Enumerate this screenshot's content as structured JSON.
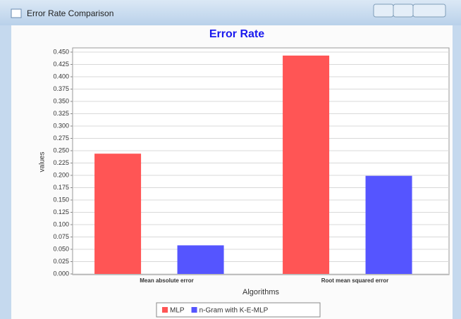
{
  "window": {
    "title": "Error Rate Comparison"
  },
  "chart_data": {
    "type": "bar",
    "title": "Error Rate",
    "xlabel": "Algorithms",
    "ylabel": "values",
    "categories": [
      "Mean absolute error",
      "Root mean squared error"
    ],
    "series": [
      {
        "name": "MLP",
        "color": "#ff5555",
        "values": [
          0.244,
          0.443
        ]
      },
      {
        "name": "n-Gram with K-E-MLP",
        "color": "#5555ff",
        "values": [
          0.058,
          0.199
        ]
      }
    ],
    "ylim": [
      0,
      0.45
    ],
    "yticks": [
      {
        "value": 0,
        "label": "0.000"
      },
      {
        "value": 0.025,
        "label": "0.025"
      },
      {
        "value": 0.05,
        "label": "0.050"
      },
      {
        "value": 0.075,
        "label": "0.075"
      },
      {
        "value": 0.1,
        "label": "0.100"
      },
      {
        "value": 0.125,
        "label": "0.125"
      },
      {
        "value": 0.15,
        "label": "0.150"
      },
      {
        "value": 0.175,
        "label": "0.175"
      },
      {
        "value": 0.2,
        "label": "0.200"
      },
      {
        "value": 0.225,
        "label": "0.225"
      },
      {
        "value": 0.25,
        "label": "0.250"
      },
      {
        "value": 0.275,
        "label": "0.275"
      },
      {
        "value": 0.3,
        "label": "0.300"
      },
      {
        "value": 0.325,
        "label": "0.325"
      },
      {
        "value": 0.35,
        "label": "0.350"
      },
      {
        "value": 0.375,
        "label": "0.375"
      },
      {
        "value": 0.4,
        "label": "0.400"
      },
      {
        "value": 0.425,
        "label": "0.425"
      },
      {
        "value": 0.45,
        "label": "0.450"
      }
    ],
    "grid": true,
    "legend": "bottom"
  }
}
